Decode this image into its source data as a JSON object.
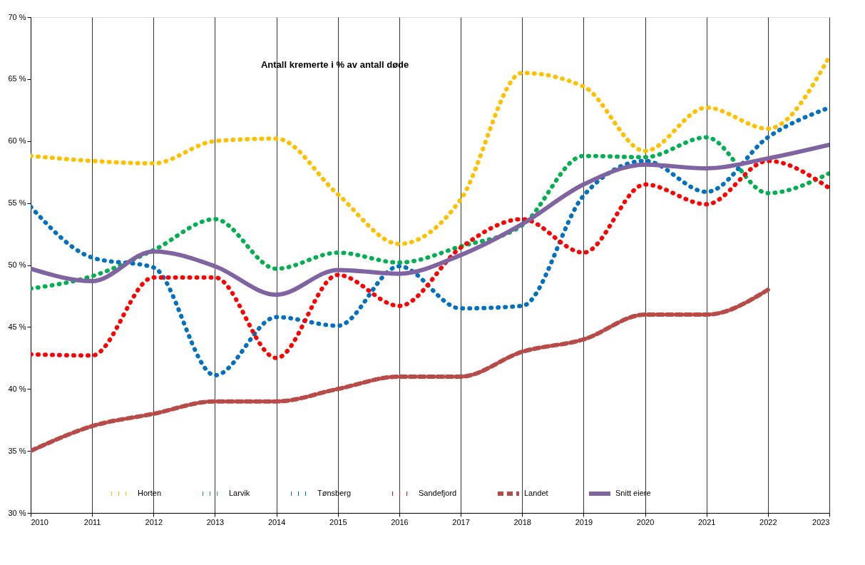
{
  "chart_data": {
    "type": "line",
    "title": "Antall kremerte i % av antall døde",
    "x": [
      2010,
      2011,
      2012,
      2013,
      2014,
      2015,
      2016,
      2017,
      2018,
      2019,
      2020,
      2021,
      2022,
      2023
    ],
    "series": [
      {
        "name": "Horten",
        "color": "#ffc000",
        "line_style": "dotted",
        "values": [
          58.8,
          58.4,
          58.2,
          60.0,
          60.2,
          55.7,
          51.7,
          55.3,
          65.5,
          64.4,
          59.2,
          62.7,
          61.0,
          66.8
        ]
      },
      {
        "name": "Larvik",
        "color": "#00b050",
        "line_style": "dotted",
        "values": [
          48.1,
          49.1,
          51.2,
          53.7,
          49.7,
          51.0,
          50.2,
          51.5,
          53.2,
          58.8,
          58.7,
          60.3,
          55.8,
          57.4
        ]
      },
      {
        "name": "Tønsberg",
        "color": "#0070c0",
        "line_style": "dotted",
        "values": [
          54.7,
          50.6,
          49.8,
          41.1,
          45.8,
          45.1,
          49.9,
          46.5,
          46.7,
          55.6,
          58.4,
          55.9,
          60.3,
          62.7
        ]
      },
      {
        "name": "Sandefjord",
        "color": "#ff0000",
        "line_style": "dotted",
        "values": [
          42.8,
          42.7,
          49.0,
          49.0,
          42.5,
          49.2,
          46.7,
          51.4,
          53.7,
          51.0,
          56.5,
          54.9,
          58.4,
          56.2
        ]
      },
      {
        "name": "Landet",
        "color": "#b84a47",
        "line_style": "dashed",
        "values": [
          35.0,
          37.0,
          38.0,
          39.0,
          39.0,
          40.0,
          41.0,
          41.0,
          43.0,
          44.0,
          46.0,
          46.0,
          48.0,
          null
        ]
      },
      {
        "name": "Snitt eiere",
        "color": "#8064a2",
        "line_style": "solid",
        "values": [
          49.7,
          48.7,
          51.1,
          49.9,
          47.6,
          49.6,
          49.3,
          50.8,
          53.3,
          56.5,
          58.1,
          57.8,
          58.6,
          59.7
        ]
      }
    ],
    "xlim": [
      2010,
      2023
    ],
    "xticks": [
      2010,
      2011,
      2012,
      2013,
      2014,
      2015,
      2016,
      2017,
      2018,
      2019,
      2020,
      2021,
      2022,
      2023
    ],
    "ylim": [
      30,
      70
    ],
    "yticks": [
      {
        "value": 30,
        "label": "30 %"
      },
      {
        "value": 35,
        "label": "35 %"
      },
      {
        "value": 40,
        "label": "40 %"
      },
      {
        "value": 45,
        "label": "45 %"
      },
      {
        "value": 50,
        "label": "50 %"
      },
      {
        "value": 55,
        "label": "55 %"
      },
      {
        "value": 60,
        "label": "60 %"
      },
      {
        "value": 65,
        "label": "65 %"
      },
      {
        "value": 70,
        "label": "70 %"
      }
    ],
    "grid": "x",
    "legend": "bottom",
    "marker": "none"
  }
}
